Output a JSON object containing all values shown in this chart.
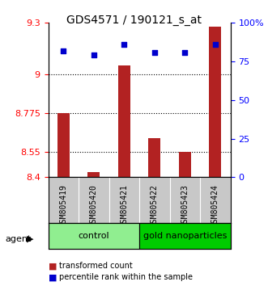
{
  "title": "GDS4571 / 190121_s_at",
  "categories": [
    "GSM805419",
    "GSM805420",
    "GSM805421",
    "GSM805422",
    "GSM805423",
    "GSM805424"
  ],
  "red_values": [
    8.775,
    8.43,
    9.05,
    8.63,
    8.55,
    9.28
  ],
  "blue_values": [
    82,
    79,
    86,
    81,
    81,
    86
  ],
  "ylim_left": [
    8.4,
    9.3
  ],
  "ylim_right": [
    0,
    100
  ],
  "yticks_left": [
    8.4,
    8.55,
    8.775,
    9.0,
    9.3
  ],
  "ytick_labels_left": [
    "8.4",
    "8.55",
    "8.775",
    "9",
    "9.3"
  ],
  "yticks_right": [
    0,
    25,
    50,
    75,
    100
  ],
  "ytick_labels_right": [
    "0",
    "25",
    "50",
    "75",
    "100%"
  ],
  "hlines": [
    9.0,
    8.775,
    8.55
  ],
  "control_group": [
    "GSM805419",
    "GSM805420",
    "GSM805421"
  ],
  "treatment_group": [
    "GSM805422",
    "GSM805423",
    "GSM805424"
  ],
  "control_label": "control",
  "treatment_label": "gold nanoparticles",
  "agent_label": "agent",
  "legend_red": "transformed count",
  "legend_blue": "percentile rank within the sample",
  "bar_color": "#b22222",
  "dot_color": "#0000cd",
  "bar_bottom": 8.4,
  "control_color": "#90ee90",
  "treatment_color": "#00cc00",
  "group_bg_color": "#c8c8c8",
  "plot_bg_color": "#ffffff"
}
